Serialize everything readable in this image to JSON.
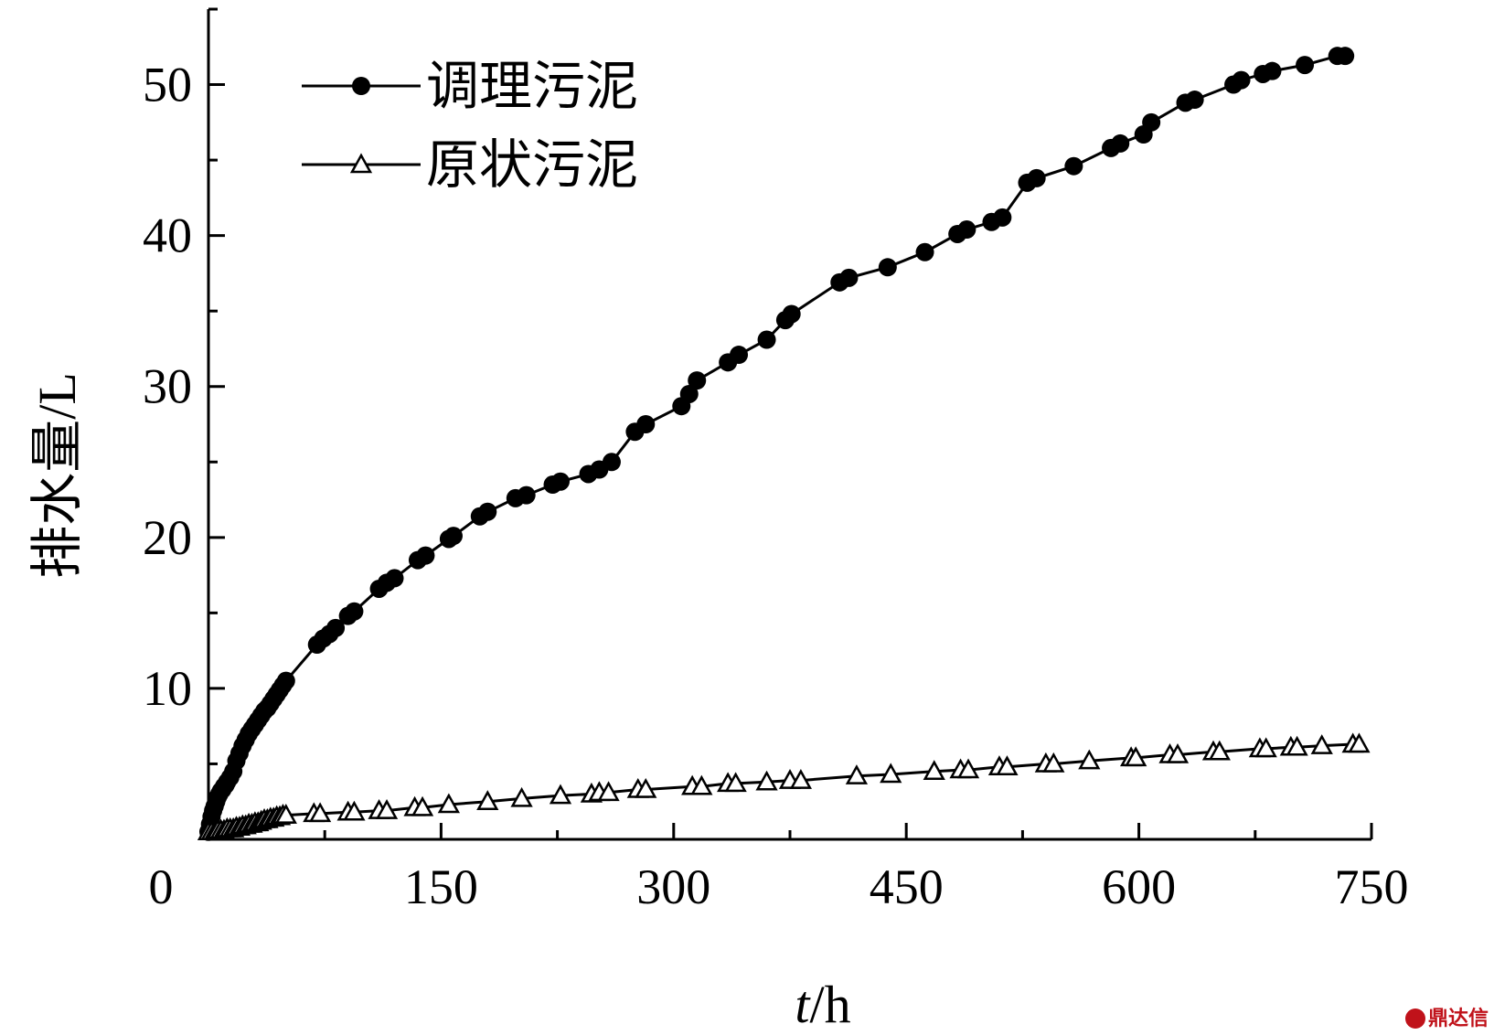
{
  "chart_data": {
    "type": "line",
    "xlabel_italic": "t",
    "xlabel_rest": "/h",
    "ylabel": "排水量/L",
    "xlim": [
      0,
      750
    ],
    "ylim": [
      0,
      55
    ],
    "x_ticks": [
      0,
      150,
      300,
      450,
      600,
      750
    ],
    "y_ticks": [
      10,
      20,
      30,
      40,
      50
    ],
    "legend_position": "top-left",
    "grid": false,
    "series": [
      {
        "name": "调理污泥",
        "marker": "filled-circle",
        "x": [
          0,
          1,
          2,
          3,
          4,
          5,
          6,
          7,
          8,
          9,
          10,
          11,
          12,
          14,
          16,
          18,
          20,
          22,
          24,
          26,
          28,
          30,
          32,
          34,
          36,
          38,
          40,
          42,
          44,
          46,
          48,
          50,
          70,
          74,
          78,
          82,
          90,
          94,
          110,
          115,
          120,
          135,
          140,
          155,
          158,
          175,
          180,
          198,
          205,
          222,
          227,
          245,
          252,
          260,
          275,
          282,
          305,
          310,
          315,
          335,
          342,
          360,
          372,
          376,
          407,
          413,
          438,
          462,
          483,
          489,
          505,
          512,
          528,
          534,
          558,
          582,
          588,
          603,
          608,
          630,
          636,
          661,
          666,
          680,
          686,
          707,
          728,
          733
        ],
        "y": [
          0.5,
          1.0,
          1.5,
          1.9,
          2.2,
          2.5,
          2.8,
          3.0,
          3.2,
          3.3,
          3.5,
          3.6,
          3.8,
          4.1,
          4.5,
          5.2,
          5.7,
          6.2,
          6.6,
          7.0,
          7.3,
          7.6,
          7.9,
          8.2,
          8.5,
          8.7,
          9.0,
          9.3,
          9.6,
          9.9,
          10.2,
          10.5,
          12.9,
          13.3,
          13.6,
          14.0,
          14.8,
          15.1,
          16.6,
          17.0,
          17.3,
          18.5,
          18.8,
          19.9,
          20.1,
          21.4,
          21.7,
          22.6,
          22.8,
          23.5,
          23.7,
          24.2,
          24.5,
          25.0,
          27.0,
          27.5,
          28.7,
          29.5,
          30.4,
          31.6,
          32.1,
          33.1,
          34.4,
          34.8,
          36.9,
          37.2,
          37.9,
          38.9,
          40.1,
          40.4,
          40.9,
          41.2,
          43.5,
          43.8,
          44.6,
          45.8,
          46.1,
          46.7,
          47.5,
          48.8,
          49.0,
          50.0,
          50.3,
          50.7,
          50.9,
          51.3,
          51.9,
          51.9
        ]
      },
      {
        "name": "原状污泥",
        "marker": "open-triangle",
        "x": [
          0,
          2,
          4,
          6,
          8,
          10,
          12,
          14,
          16,
          18,
          20,
          22,
          24,
          26,
          28,
          30,
          32,
          34,
          36,
          38,
          40,
          42,
          44,
          46,
          48,
          50,
          68,
          72,
          90,
          94,
          110,
          115,
          133,
          138,
          155,
          180,
          202,
          227,
          247,
          252,
          258,
          277,
          282,
          312,
          318,
          335,
          340,
          360,
          375,
          382,
          418,
          440,
          468,
          485,
          490,
          510,
          515,
          540,
          545,
          568,
          595,
          598,
          620,
          625,
          648,
          652,
          678,
          682,
          698,
          702,
          718,
          738,
          742
        ],
        "y": [
          0.5,
          0.5,
          0.5,
          0.6,
          0.6,
          0.6,
          0.7,
          0.7,
          0.7,
          0.8,
          0.8,
          0.9,
          0.9,
          1.0,
          1.0,
          1.1,
          1.1,
          1.2,
          1.3,
          1.3,
          1.4,
          1.4,
          1.5,
          1.5,
          1.6,
          1.6,
          1.7,
          1.7,
          1.8,
          1.8,
          1.9,
          1.9,
          2.1,
          2.1,
          2.3,
          2.5,
          2.7,
          2.9,
          3.0,
          3.1,
          3.1,
          3.3,
          3.3,
          3.5,
          3.5,
          3.7,
          3.7,
          3.8,
          3.9,
          3.9,
          4.2,
          4.3,
          4.5,
          4.6,
          4.6,
          4.8,
          4.8,
          5.0,
          5.0,
          5.2,
          5.4,
          5.4,
          5.6,
          5.6,
          5.8,
          5.8,
          6.0,
          6.0,
          6.1,
          6.1,
          6.2,
          6.3,
          6.3
        ]
      }
    ]
  },
  "watermark": {
    "text": "鼎达信",
    "color": "#c0121a"
  }
}
